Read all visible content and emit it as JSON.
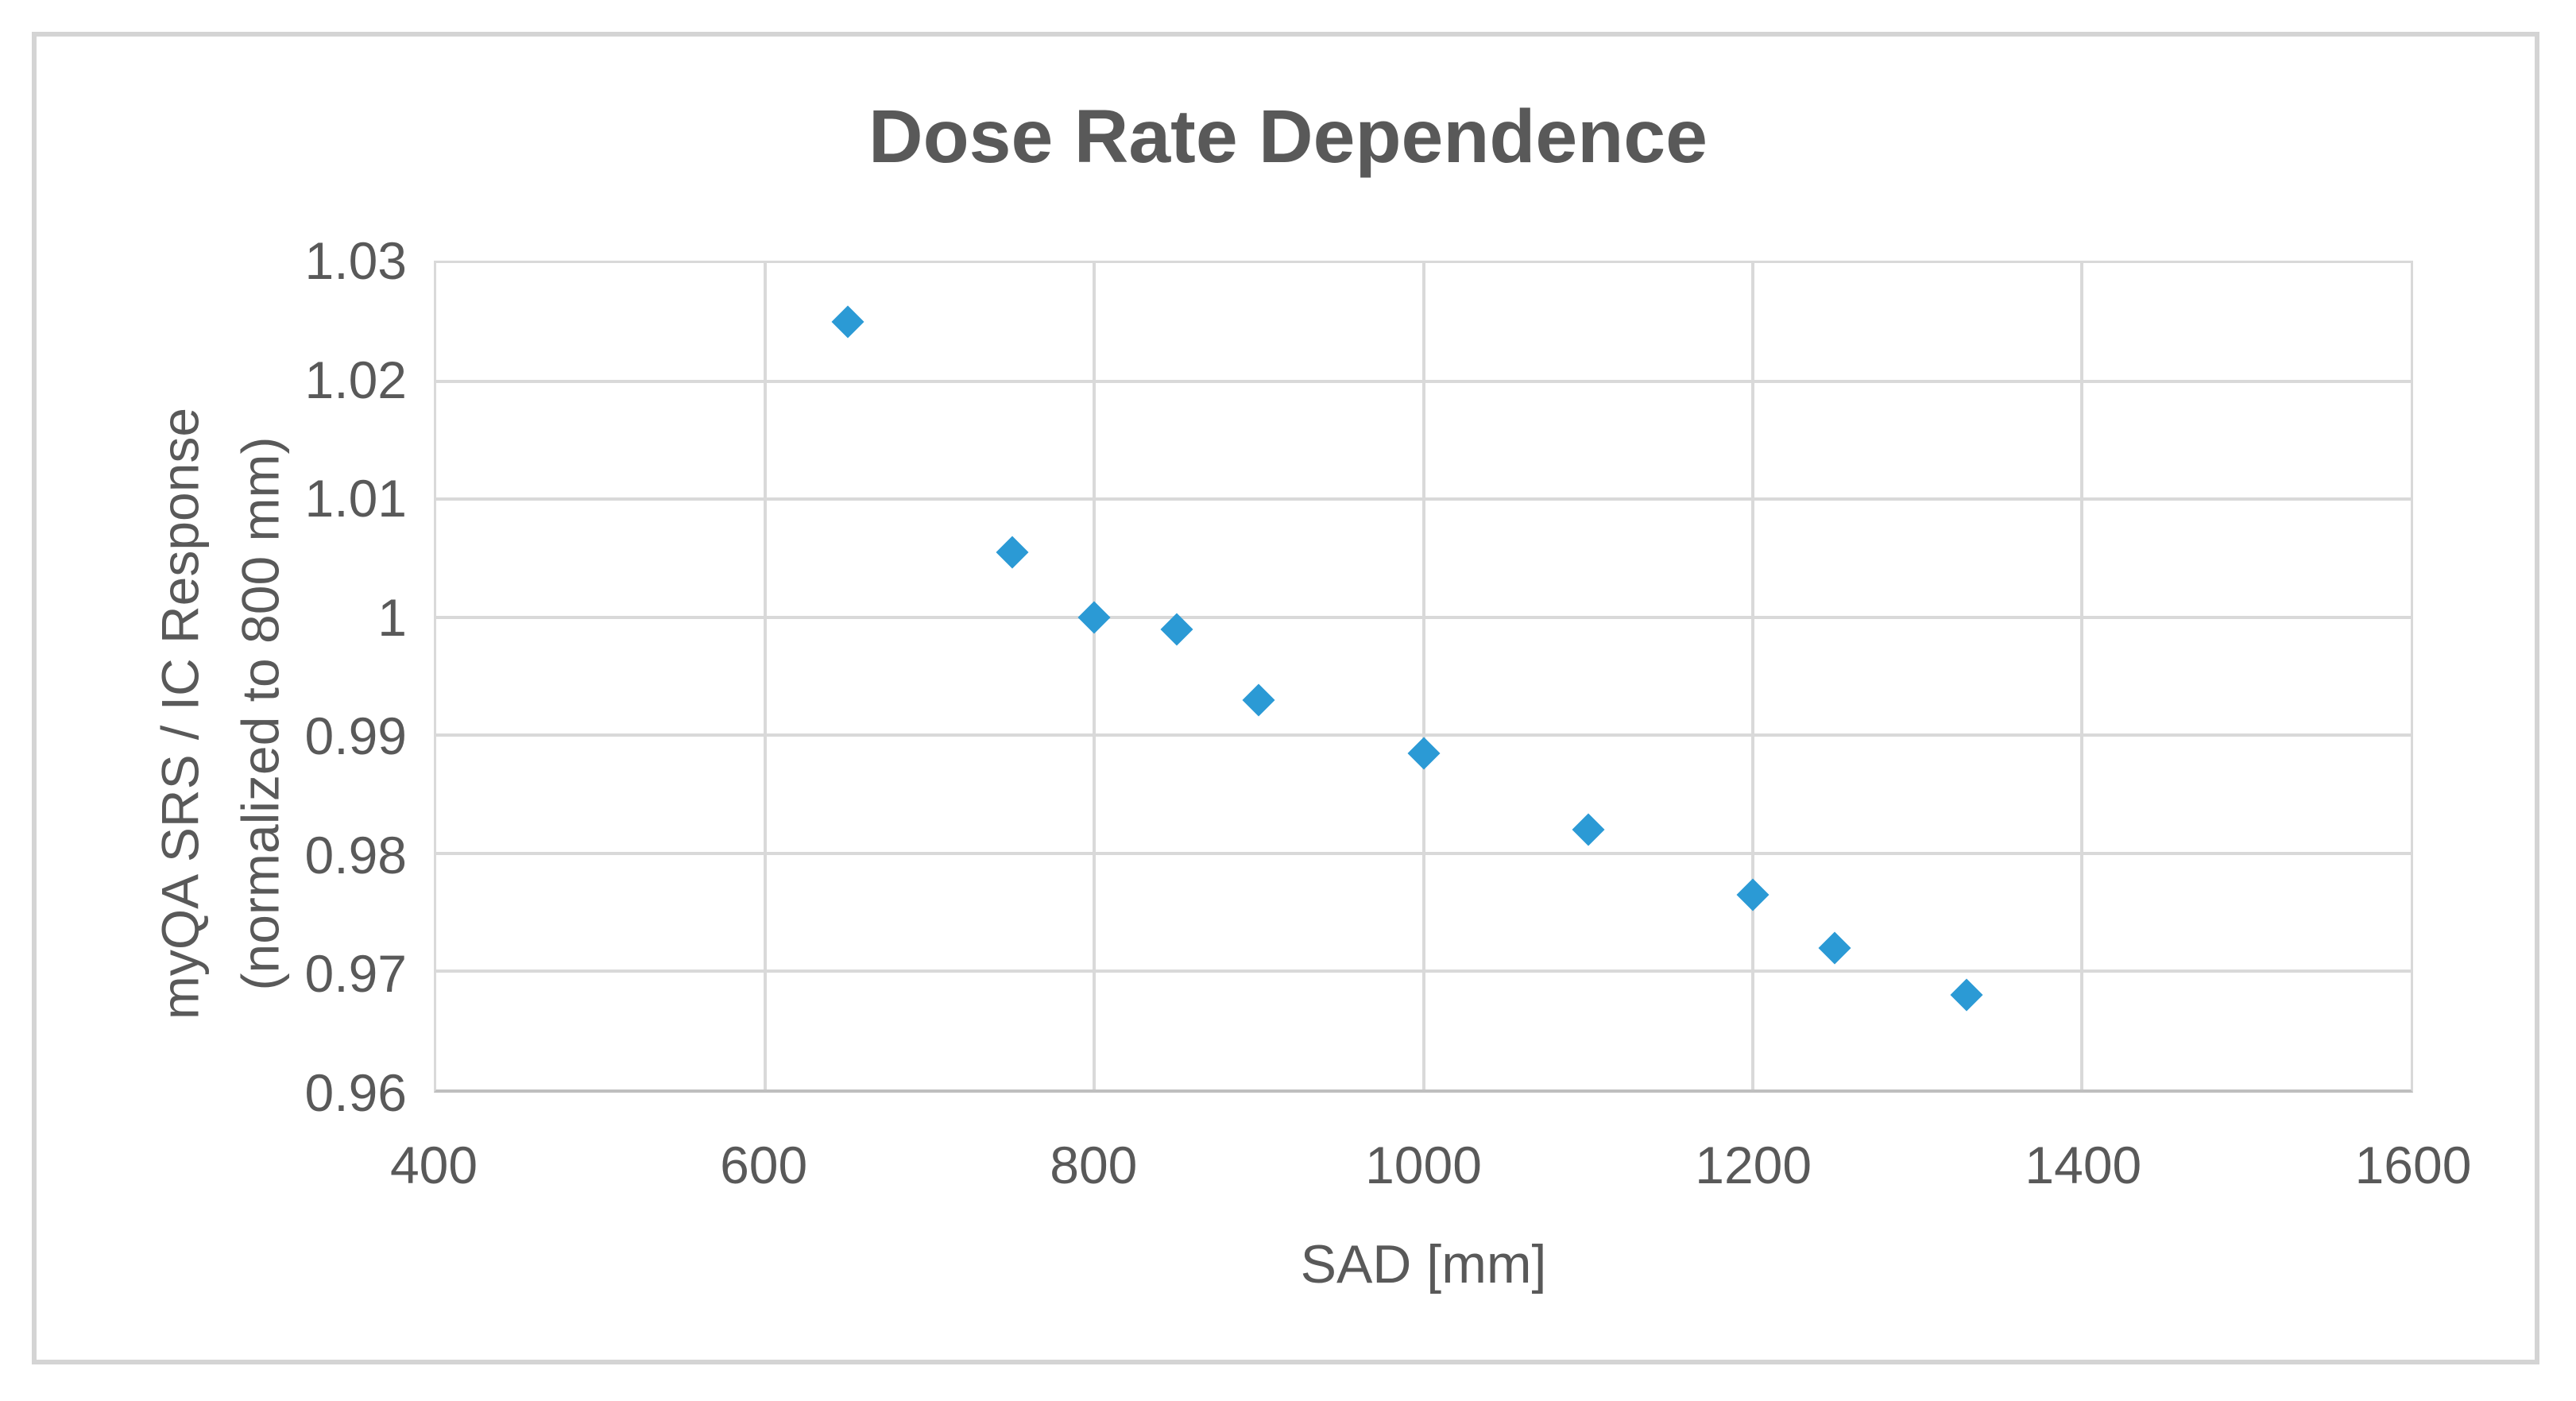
{
  "chart": {
    "title": "Dose Rate Dependence",
    "x_axis_title": "SAD [mm]",
    "y_axis_title_line1": "myQA SRS / IC Response",
    "y_axis_title_line2": "(normalized to 800 mm)"
  },
  "colors": {
    "marker": "#2b9ad5",
    "text": "#595959",
    "gridline": "#d9d9d9",
    "axis_line": "#bfbfbf",
    "frame_border": "#d4d4d4"
  },
  "chart_data": {
    "type": "scatter",
    "title": "Dose Rate Dependence",
    "xlabel": "SAD [mm]",
    "ylabel": "myQA SRS / IC Response (normalized to 800 mm)",
    "xlim": [
      400,
      1600
    ],
    "ylim": [
      0.96,
      1.03
    ],
    "x_ticks": [
      "400",
      "600",
      "800",
      "1000",
      "1200",
      "1400",
      "1600"
    ],
    "y_ticks": [
      "1.03",
      "1.02",
      "1.01",
      "1",
      "0.99",
      "0.98",
      "0.97",
      "0.96"
    ],
    "grid": true,
    "legend": false,
    "marker": "diamond",
    "marker_color": "#2b9ad5",
    "series": [
      {
        "name": "myQA SRS / IC Response (normalized to 800 mm)",
        "points": [
          [
            650,
            1.025
          ],
          [
            750,
            1.0055
          ],
          [
            800,
            1.0
          ],
          [
            850,
            0.999
          ],
          [
            900,
            0.993
          ],
          [
            1000,
            0.9885
          ],
          [
            1100,
            0.982
          ],
          [
            1200,
            0.9765
          ],
          [
            1250,
            0.972
          ],
          [
            1330,
            0.968
          ]
        ]
      }
    ]
  }
}
